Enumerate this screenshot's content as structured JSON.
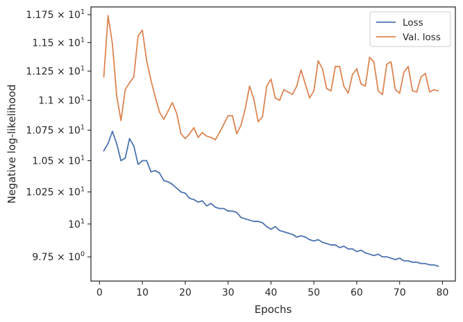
{
  "chart_data": {
    "type": "line",
    "xlabel": "Epochs",
    "ylabel": "Negative log-likelihood",
    "xlim": [
      -2,
      83
    ],
    "ylim": [
      9.57,
      11.82
    ],
    "yscale": "log",
    "grid": false,
    "legend_position": "top-right",
    "x_ticks": [
      {
        "value": 0,
        "label": "0"
      },
      {
        "value": 10,
        "label": "10"
      },
      {
        "value": 20,
        "label": "20"
      },
      {
        "value": 30,
        "label": "30"
      },
      {
        "value": 40,
        "label": "40"
      },
      {
        "value": 50,
        "label": "50"
      },
      {
        "value": 60,
        "label": "60"
      },
      {
        "value": 70,
        "label": "70"
      },
      {
        "value": 80,
        "label": "80"
      }
    ],
    "y_ticks": [
      {
        "value": 9.75,
        "mantissa": "9.75 × 10",
        "exponent": "0",
        "label": "9.75 × 10⁰"
      },
      {
        "value": 10.0,
        "mantissa": "10",
        "exponent": "1",
        "label": "10¹"
      },
      {
        "value": 10.25,
        "mantissa": "1.025 × 10",
        "exponent": "1",
        "label": "1.025 × 10¹"
      },
      {
        "value": 10.5,
        "mantissa": "1.05 × 10",
        "exponent": "1",
        "label": "1.05 × 10¹"
      },
      {
        "value": 10.75,
        "mantissa": "1.075 × 10",
        "exponent": "1",
        "label": "1.075 × 10¹"
      },
      {
        "value": 11.0,
        "mantissa": "1.1 × 10",
        "exponent": "1",
        "label": "1.1 × 10¹"
      },
      {
        "value": 11.25,
        "mantissa": "1.125 × 10",
        "exponent": "1",
        "label": "1.125 × 10¹"
      },
      {
        "value": 11.5,
        "mantissa": "1.15 × 10",
        "exponent": "1",
        "label": "1.15 × 10¹"
      },
      {
        "value": 11.75,
        "mantissa": "1.175 × 10",
        "exponent": "1",
        "label": "1.175 × 10¹"
      }
    ],
    "series": [
      {
        "name": "Loss",
        "color": "#4c72b0",
        "x": [
          1,
          2,
          3,
          4,
          5,
          6,
          7,
          8,
          9,
          10,
          11,
          12,
          13,
          14,
          15,
          16,
          17,
          18,
          19,
          20,
          21,
          22,
          23,
          24,
          25,
          26,
          27,
          28,
          29,
          30,
          31,
          32,
          33,
          34,
          35,
          36,
          37,
          38,
          39,
          40,
          41,
          42,
          43,
          44,
          45,
          46,
          47,
          48,
          49,
          50,
          51,
          52,
          53,
          54,
          55,
          56,
          57,
          58,
          59,
          60,
          61,
          62,
          63,
          64,
          65,
          66,
          67,
          68,
          69,
          70,
          71,
          72,
          73,
          74,
          75,
          76,
          77,
          78,
          79
        ],
        "values": [
          10.58,
          10.64,
          10.74,
          10.64,
          10.5,
          10.52,
          10.68,
          10.62,
          10.47,
          10.5,
          10.5,
          10.41,
          10.42,
          10.4,
          10.34,
          10.33,
          10.31,
          10.28,
          10.25,
          10.24,
          10.2,
          10.19,
          10.17,
          10.18,
          10.14,
          10.16,
          10.13,
          10.12,
          10.12,
          10.1,
          10.1,
          10.09,
          10.05,
          10.04,
          10.03,
          10.02,
          10.02,
          10.01,
          9.98,
          9.96,
          9.98,
          9.95,
          9.94,
          9.93,
          9.92,
          9.9,
          9.91,
          9.9,
          9.88,
          9.87,
          9.88,
          9.86,
          9.85,
          9.84,
          9.84,
          9.82,
          9.83,
          9.81,
          9.81,
          9.79,
          9.8,
          9.78,
          9.77,
          9.76,
          9.77,
          9.75,
          9.75,
          9.74,
          9.73,
          9.74,
          9.72,
          9.72,
          9.71,
          9.71,
          9.7,
          9.7,
          9.69,
          9.69,
          9.68
        ]
      },
      {
        "name": "Val. loss",
        "color": "#dd8452",
        "x": [
          1,
          2,
          3,
          4,
          5,
          6,
          7,
          8,
          9,
          10,
          11,
          12,
          13,
          14,
          15,
          16,
          17,
          18,
          19,
          20,
          21,
          22,
          23,
          24,
          25,
          26,
          27,
          28,
          29,
          30,
          31,
          32,
          33,
          34,
          35,
          36,
          37,
          38,
          39,
          40,
          41,
          42,
          43,
          44,
          45,
          46,
          47,
          48,
          49,
          50,
          51,
          52,
          53,
          54,
          55,
          56,
          57,
          58,
          59,
          60,
          61,
          62,
          63,
          64,
          65,
          66,
          67,
          68,
          69,
          70,
          71,
          72,
          73,
          74,
          75,
          76,
          77,
          78,
          79
        ],
        "values": [
          11.2,
          11.74,
          11.49,
          11.04,
          10.83,
          11.09,
          11.15,
          11.2,
          11.56,
          11.61,
          11.34,
          11.17,
          11.03,
          10.9,
          10.84,
          10.91,
          10.98,
          10.89,
          10.72,
          10.68,
          10.72,
          10.77,
          10.69,
          10.73,
          10.7,
          10.69,
          10.67,
          10.73,
          10.8,
          10.87,
          10.87,
          10.72,
          10.79,
          10.93,
          11.12,
          11.01,
          10.82,
          10.86,
          11.12,
          11.18,
          11.02,
          11.0,
          11.09,
          11.07,
          11.05,
          11.12,
          11.26,
          11.14,
          11.02,
          11.08,
          11.34,
          11.27,
          11.1,
          11.08,
          11.29,
          11.29,
          11.12,
          11.06,
          11.22,
          11.27,
          11.14,
          11.12,
          11.37,
          11.33,
          11.08,
          11.05,
          11.31,
          11.33,
          11.09,
          11.06,
          11.24,
          11.29,
          11.08,
          11.07,
          11.2,
          11.23,
          11.07,
          11.09,
          11.08
        ]
      }
    ]
  }
}
